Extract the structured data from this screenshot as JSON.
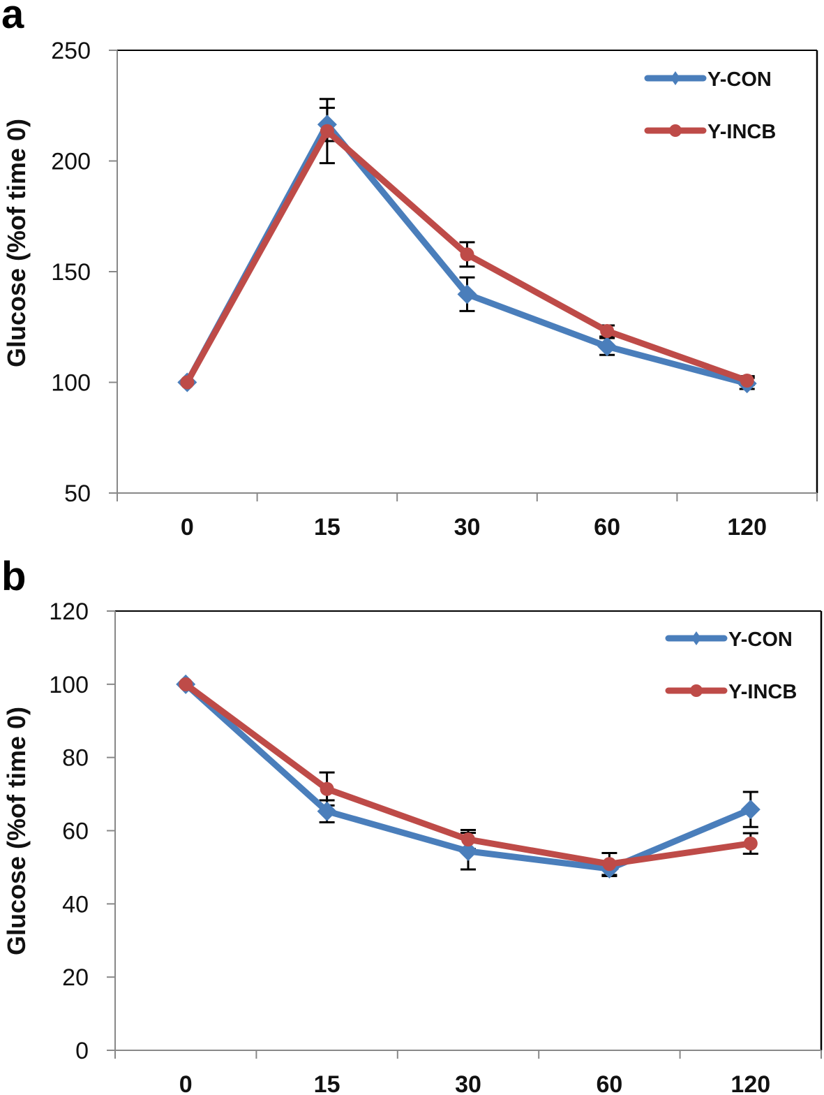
{
  "chart_data": [
    {
      "panel": "a",
      "type": "line",
      "title": "",
      "xlabel": "",
      "ylabel": "Glucose  (%of time 0)",
      "categories": [
        "0",
        "15",
        "30",
        "60",
        "120"
      ],
      "ylim": [
        50,
        250
      ],
      "yticks": [
        50,
        100,
        150,
        200,
        250
      ],
      "grid": false,
      "legend_position": "top-right",
      "series": [
        {
          "name": "Y-CON",
          "color": "#4a7ebb",
          "marker": "diamond",
          "values": [
            100,
            216.5,
            139.8,
            116.2,
            99.5
          ],
          "error": [
            0,
            7.5,
            7.6,
            3.8,
            2.5
          ]
        },
        {
          "name": "Y-INCB",
          "color": "#be4b48",
          "marker": "circle",
          "values": [
            100,
            213.5,
            157.8,
            123.2,
            100.8
          ],
          "error": [
            0,
            14.5,
            5.5,
            2.5,
            2.0
          ]
        }
      ]
    },
    {
      "panel": "b",
      "type": "line",
      "title": "",
      "xlabel": "",
      "ylabel": "Glucose  (%of time 0)",
      "categories": [
        "0",
        "15",
        "30",
        "60",
        "120"
      ],
      "ylim": [
        0,
        120
      ],
      "yticks": [
        0,
        20,
        40,
        60,
        80,
        100,
        120
      ],
      "grid": false,
      "legend_position": "top-right",
      "series": [
        {
          "name": "Y-CON",
          "color": "#4a7ebb",
          "marker": "diamond",
          "values": [
            100,
            65.3,
            54.4,
            49.6,
            65.8
          ],
          "error": [
            0,
            3.0,
            5.0,
            2.0,
            4.8
          ]
        },
        {
          "name": "Y-INCB",
          "color": "#be4b48",
          "marker": "circle",
          "values": [
            100,
            71.4,
            57.6,
            50.9,
            56.5
          ],
          "error": [
            0,
            4.5,
            2.6,
            3.0,
            2.8
          ]
        }
      ]
    }
  ]
}
